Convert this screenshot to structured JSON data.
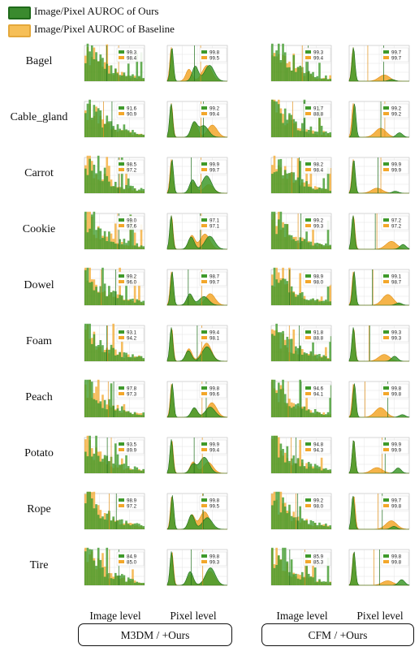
{
  "legend": [
    {
      "label": "Image/Pixel  AUROC of Ours",
      "color": "#3a8a2e",
      "border": "#1f6a1a"
    },
    {
      "label": "Image/Pixel  AUROC of Baseline",
      "color": "#f5b43a",
      "border": "#e09a1a"
    }
  ],
  "colors": {
    "ours": "#3f9a2b",
    "baseline": "#f3a72a",
    "ours_line": "#1e6e1a",
    "baseline_line": "#e0901a",
    "grid": "#dddddd"
  },
  "column_labels": [
    "Image level",
    "Pixel level",
    "Image level",
    "Pixel level"
  ],
  "groups": [
    "M3DM / +Ours",
    "CFM / +Ours"
  ],
  "chart_data": {
    "type": "area",
    "title": "",
    "categories": [
      "Bagel",
      "Cable_gland",
      "Carrot",
      "Cookie",
      "Dowel",
      "Foam",
      "Peach",
      "Potato",
      "Rope",
      "Tire"
    ],
    "panels": [
      "M3DM / +Ours Image level",
      "M3DM / +Ours Pixel level",
      "CFM / +Ours Image level",
      "CFM / +Ours Pixel level"
    ],
    "series": [
      {
        "name": "Image/Pixel  AUROC of Ours",
        "values": [
          [
            "99.3",
            "99.8",
            "99.3",
            "99.7"
          ],
          [
            "91.6",
            "99.2",
            "91.7",
            "99.2"
          ],
          [
            "98.5",
            "99.9",
            "98.2",
            "99.9"
          ],
          [
            "99.0",
            "97.1",
            "99.2",
            "97.2"
          ],
          [
            "99.2",
            "98.7",
            "98.9",
            "99.1"
          ],
          [
            "93.1",
            "99.4",
            "91.8",
            "99.3"
          ],
          [
            "97.8",
            "99.8",
            "94.6",
            "99.8"
          ],
          [
            "93.5",
            "99.9",
            "94.8",
            "99.9"
          ],
          [
            "98.9",
            "99.8",
            "99.2",
            "99.7"
          ],
          [
            "84.9",
            "99.8",
            "85.9",
            "99.8"
          ]
        ]
      },
      {
        "name": "Image/Pixel  AUROC of Baseline",
        "values": [
          [
            "98.4",
            "99.5",
            "99.4",
            "99.7"
          ],
          [
            "90.9",
            "99.4",
            "88.8",
            "99.2"
          ],
          [
            "97.2",
            "99.7",
            "98.4",
            "99.9"
          ],
          [
            "97.6",
            "97.1",
            "99.3",
            "97.2"
          ],
          [
            "96.0",
            "99.7",
            "98.0",
            "98.7"
          ],
          [
            "94.2",
            "98.1",
            "88.8",
            "99.3"
          ],
          [
            "97.3",
            "99.6",
            "94.1",
            "99.8"
          ],
          [
            "89.9",
            "99.4",
            "94.3",
            "99.9"
          ],
          [
            "97.2",
            "99.5",
            "98.0",
            "99.8"
          ],
          [
            "85.0",
            "99.3",
            "85.3",
            "99.8"
          ]
        ]
      }
    ],
    "grid": true,
    "legend_position": "top-left"
  }
}
